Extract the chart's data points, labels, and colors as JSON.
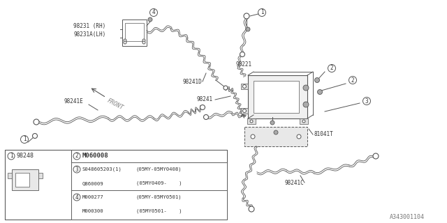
{
  "bg_color": "#ffffff",
  "line_color": "#555555",
  "text_color": "#333333",
  "part_labels": {
    "98231_RH": "98231 (RH)",
    "98231A_LH": "98231A(LH)",
    "98241D": "98241D",
    "98221": "98221",
    "98241": "98241",
    "98241E": "98241E",
    "98241C": "98241C",
    "81041T": "81041T",
    "98248": "98248"
  },
  "legend": {
    "item1_num": "1",
    "item1_part": "98248",
    "item2_num": "2",
    "item2_part": "M060008",
    "item3_num": "3",
    "item3_part1": "S048605203(1)",
    "item3_range1": "(05MY-05MY0408)",
    "item3_part2": "Q860009",
    "item3_range2": "(05MY0409-    )",
    "item4_num": "4",
    "item4_part1": "M000277",
    "item4_range1": "(05MY-05MY0501)",
    "item4_part2": "M000300",
    "item4_range2": "(05MY0501-    )"
  },
  "diagram_number": "A343001104",
  "front_label": "FRONT"
}
